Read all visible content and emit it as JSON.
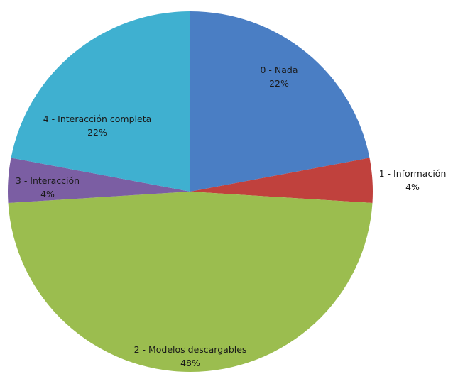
{
  "chart_data": {
    "type": "pie",
    "title": "",
    "categories": [
      "0 - Nada",
      "1 - Información",
      "2 - Modelos descargables",
      "3 - Interacción",
      "4 - Interacción completa"
    ],
    "values": [
      22,
      4,
      48,
      4,
      22
    ],
    "value_labels": [
      "22%",
      "4%",
      "48%",
      "4%",
      "22%"
    ],
    "colors": [
      "#4a7ec4",
      "#c0413d",
      "#9bbd4f",
      "#7b5ea3",
      "#3fb0d0"
    ],
    "legend": "none",
    "start_angle": "12 o'clock, clockwise"
  }
}
